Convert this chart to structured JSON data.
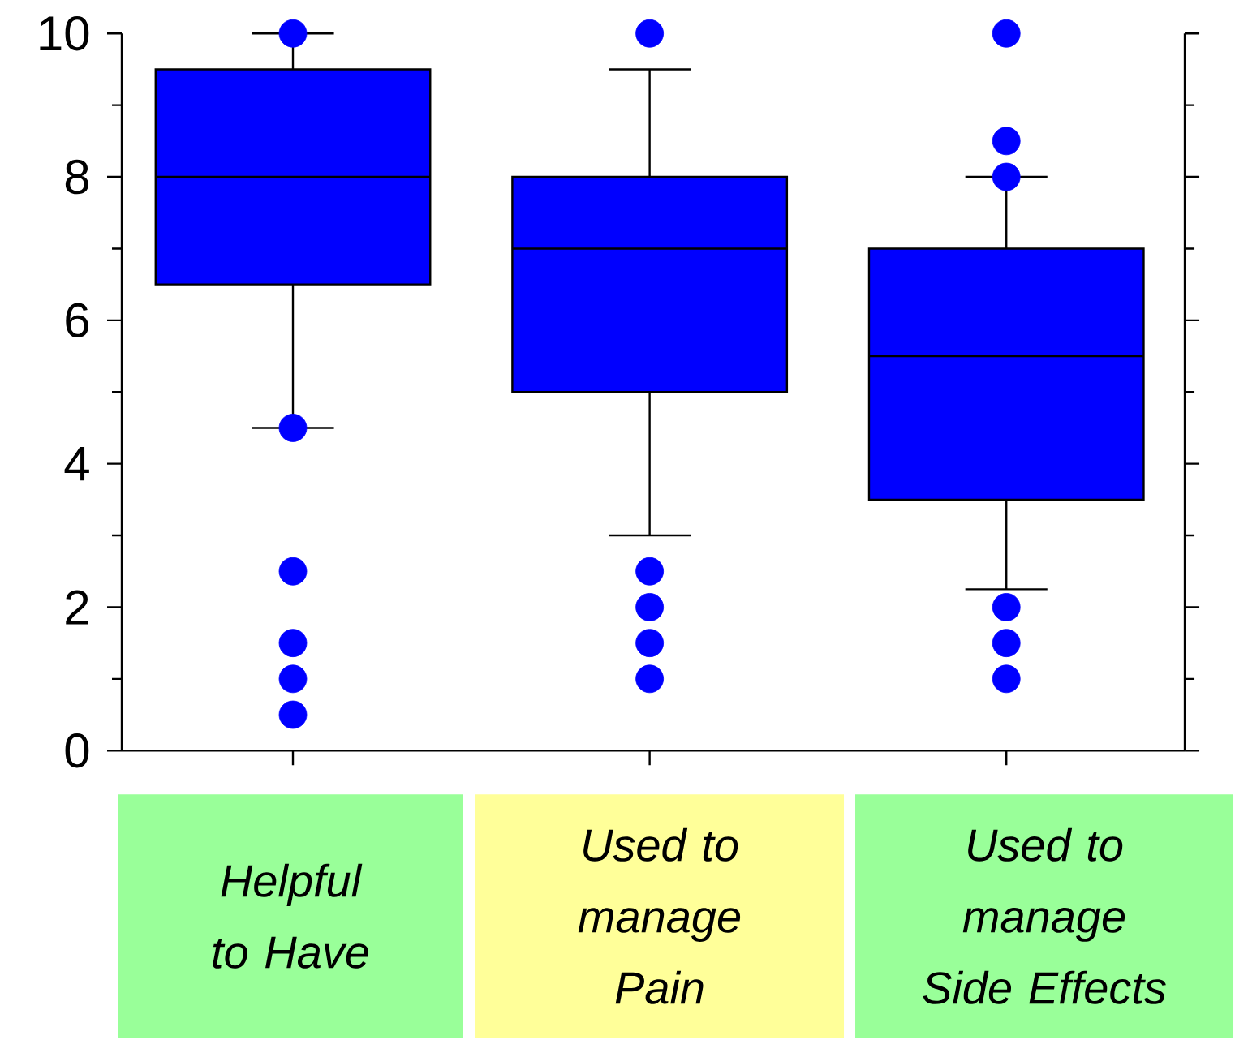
{
  "chart_data": {
    "type": "box",
    "categories": [
      "Helpful to Have",
      "Used to manage Pain",
      "Used to manage Side Effects"
    ],
    "color": "#0000ff",
    "marker": "circle",
    "ylim": [
      0,
      10
    ],
    "yticks": [
      0,
      2,
      4,
      6,
      8,
      10
    ],
    "boxes": [
      {
        "low": 4.5,
        "q1": 6.5,
        "median": 8,
        "q3": 9.5,
        "high": 10,
        "outliers": [
          10,
          4.5,
          2.5,
          1.5,
          1,
          0.5
        ]
      },
      {
        "low": 3,
        "q1": 5,
        "median": 7,
        "q3": 8,
        "high": 9.5,
        "outliers": [
          10,
          2.5,
          2,
          1.5,
          1
        ]
      },
      {
        "low": 2.25,
        "q1": 3.5,
        "median": 5.5,
        "q3": 7,
        "high": 8,
        "outliers": [
          10,
          8.5,
          8,
          2,
          1.5,
          1
        ]
      }
    ]
  }
}
